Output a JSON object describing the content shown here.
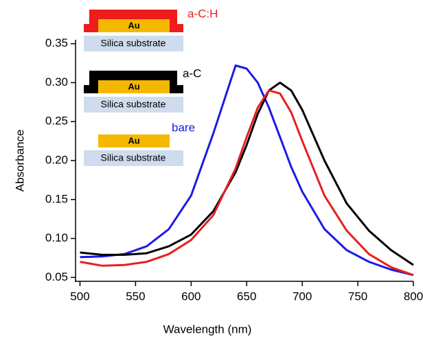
{
  "chart_data": {
    "type": "line",
    "x_label": "Wavelength (nm)",
    "y_label": "Absorbance",
    "x": [
      500,
      520,
      540,
      560,
      580,
      600,
      620,
      640,
      650,
      660,
      670,
      680,
      690,
      700,
      720,
      740,
      760,
      780,
      800
    ],
    "series": [
      {
        "name": "bare",
        "color": "#1a1ae6",
        "values": [
          0.076,
          0.077,
          0.08,
          0.09,
          0.112,
          0.155,
          0.235,
          0.322,
          0.318,
          0.3,
          0.268,
          0.23,
          0.192,
          0.16,
          0.112,
          0.085,
          0.07,
          0.06,
          0.053
        ]
      },
      {
        "name": "a-C",
        "color": "#000000",
        "values": [
          0.082,
          0.079,
          0.079,
          0.081,
          0.09,
          0.105,
          0.135,
          0.185,
          0.22,
          0.26,
          0.29,
          0.3,
          0.29,
          0.265,
          0.2,
          0.145,
          0.11,
          0.085,
          0.066
        ]
      },
      {
        "name": "a-C:H",
        "color": "#e81e1e",
        "values": [
          0.07,
          0.065,
          0.066,
          0.07,
          0.08,
          0.098,
          0.13,
          0.19,
          0.23,
          0.268,
          0.29,
          0.286,
          0.262,
          0.225,
          0.155,
          0.11,
          0.08,
          0.063,
          0.053
        ]
      }
    ],
    "xlim": [
      496,
      800
    ],
    "xticks": [
      500,
      550,
      600,
      650,
      700,
      750,
      800
    ],
    "ylim": [
      0.045,
      0.355
    ],
    "yticks": [
      0.05,
      {
        "value": 0.1,
        "label": "0.10"
      },
      0.15,
      {
        "value": 0.2,
        "label": "0.20"
      },
      0.25,
      {
        "value": 0.3,
        "label": "0.30"
      },
      0.35
    ],
    "inset": {
      "metal": "Au",
      "substrate": "Silica substrate"
    }
  }
}
